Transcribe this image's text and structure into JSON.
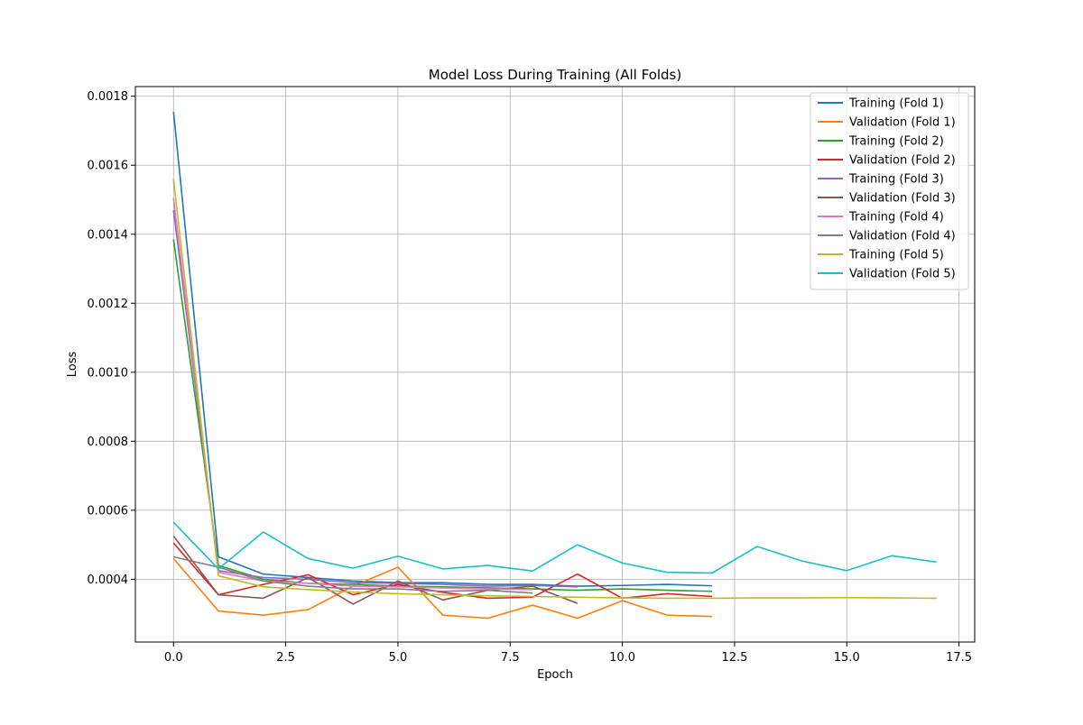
{
  "chart_data": {
    "type": "line",
    "title": "Model Loss During Training (All Folds)",
    "xlabel": "Epoch",
    "ylabel": "Loss",
    "xlim": [
      -0.85,
      17.85
    ],
    "ylim": [
      0.000218,
      0.001828
    ],
    "xticks": [
      0,
      2.5,
      5,
      7.5,
      10,
      12.5,
      15,
      17.5
    ],
    "xtick_labels": [
      "0.0",
      "2.5",
      "5.0",
      "7.5",
      "10.0",
      "12.5",
      "15.0",
      "17.5"
    ],
    "yticks": [
      0.0004,
      0.0006,
      0.0008,
      0.001,
      0.0012,
      0.0014,
      0.0016,
      0.0018
    ],
    "ytick_labels": [
      "0.0004",
      "0.0006",
      "0.0008",
      "0.0010",
      "0.0012",
      "0.0014",
      "0.0016",
      "0.0018"
    ],
    "grid": true,
    "legend_position": "top-right",
    "series": [
      {
        "name": "Training (Fold 1)",
        "color": "#1f77b4",
        "x": [
          0,
          1,
          2,
          3,
          4,
          5,
          6,
          7,
          8,
          9,
          10,
          11,
          12
        ],
        "y": [
          0.001755,
          0.000465,
          0.000415,
          0.000405,
          0.000395,
          0.00039,
          0.00039,
          0.000385,
          0.000385,
          0.00038,
          0.000382,
          0.000385,
          0.000381
        ]
      },
      {
        "name": "Validation (Fold 1)",
        "color": "#ff7f0e",
        "x": [
          0,
          1,
          2,
          3,
          4,
          5,
          6,
          7,
          8,
          9,
          10,
          11,
          12
        ],
        "y": [
          0.00046,
          0.000308,
          0.000296,
          0.000312,
          0.00038,
          0.000435,
          0.000296,
          0.000287,
          0.000325,
          0.000287,
          0.000338,
          0.000296,
          0.000292
        ]
      },
      {
        "name": "Training (Fold 2)",
        "color": "#2ca02c",
        "x": [
          0,
          1,
          2,
          3,
          4,
          5,
          6,
          7,
          8,
          9,
          10,
          11,
          12
        ],
        "y": [
          0.001385,
          0.00044,
          0.0004,
          0.000388,
          0.000385,
          0.00038,
          0.000378,
          0.000375,
          0.000372,
          0.000368,
          0.000372,
          0.000368,
          0.000365
        ]
      },
      {
        "name": "Validation (Fold 2)",
        "color": "#d62728",
        "x": [
          0,
          1,
          2,
          3,
          4,
          5,
          6,
          7,
          8,
          9,
          10,
          11,
          12
        ],
        "y": [
          0.000505,
          0.000355,
          0.000385,
          0.000413,
          0.000355,
          0.000385,
          0.000362,
          0.000345,
          0.000348,
          0.000415,
          0.000345,
          0.000358,
          0.00035
        ]
      },
      {
        "name": "Training (Fold 3)",
        "color": "#9467bd",
        "x": [
          0,
          1,
          2,
          3,
          4,
          5,
          6,
          7,
          8,
          9
        ],
        "y": [
          0.00147,
          0.000425,
          0.000405,
          0.0004,
          0.00039,
          0.000388,
          0.000385,
          0.00038,
          0.000382,
          0.000378
        ]
      },
      {
        "name": "Validation (Fold 3)",
        "color": "#8c564b",
        "x": [
          0,
          1,
          2,
          3,
          4,
          5,
          6,
          7,
          8,
          9
        ],
        "y": [
          0.000525,
          0.000355,
          0.000345,
          0.000405,
          0.000328,
          0.000395,
          0.00034,
          0.000368,
          0.00038,
          0.00033
        ]
      },
      {
        "name": "Training (Fold 4)",
        "color": "#e377c2",
        "x": [
          0,
          1,
          2,
          3,
          4,
          5,
          6,
          7,
          8
        ],
        "y": [
          0.001505,
          0.00042,
          0.000395,
          0.000388,
          0.00038,
          0.000378,
          0.000375,
          0.000372,
          0.00037
        ]
      },
      {
        "name": "Validation (Fold 4)",
        "color": "#7f7f7f",
        "x": [
          0,
          1,
          2,
          3,
          4,
          5,
          6,
          7,
          8
        ],
        "y": [
          0.000465,
          0.000435,
          0.000395,
          0.00038,
          0.000372,
          0.000372,
          0.000365,
          0.000368,
          0.00036
        ]
      },
      {
        "name": "Training (Fold 5)",
        "color": "#bcbd22",
        "x": [
          0,
          1,
          2,
          3,
          4,
          5,
          6,
          7,
          8,
          9,
          10,
          11,
          12,
          13,
          14,
          15,
          16,
          17
        ],
        "y": [
          0.00156,
          0.00041,
          0.000378,
          0.00037,
          0.000363,
          0.000358,
          0.000355,
          0.000352,
          0.00035,
          0.000348,
          0.000346,
          0.000345,
          0.000345,
          0.000346,
          0.000346,
          0.000347,
          0.000346,
          0.000345
        ]
      },
      {
        "name": "Validation (Fold 5)",
        "color": "#17becf",
        "x": [
          0,
          1,
          2,
          3,
          4,
          5,
          6,
          7,
          8,
          9,
          10,
          11,
          12,
          13,
          14,
          15,
          16,
          17
        ],
        "y": [
          0.000565,
          0.00043,
          0.000537,
          0.00046,
          0.000432,
          0.000467,
          0.00043,
          0.00044,
          0.000424,
          0.0005,
          0.000447,
          0.00042,
          0.000418,
          0.000495,
          0.000453,
          0.000425,
          0.000468,
          0.00045
        ]
      }
    ]
  }
}
